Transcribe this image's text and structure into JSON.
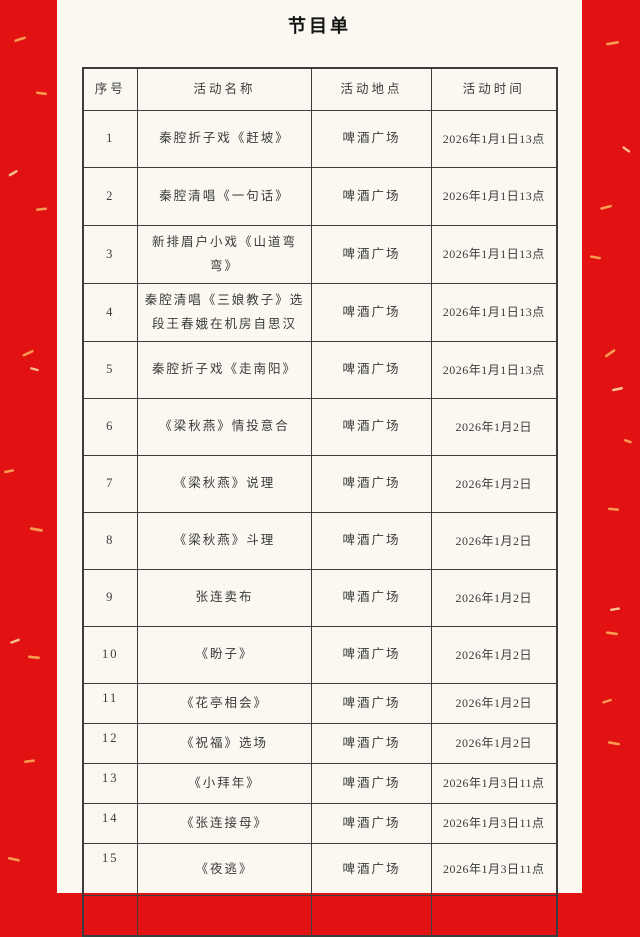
{
  "page": {
    "title": "节目单"
  },
  "table": {
    "headers": [
      "序号",
      "活动名称",
      "活动地点",
      "活动时间"
    ],
    "rows": [
      {
        "no": "1",
        "name": "秦腔折子戏《赶坡》",
        "place": "啤酒广场",
        "time": "2026年1月1日13点"
      },
      {
        "no": "2",
        "name": "秦腔清唱《一句话》",
        "place": "啤酒广场",
        "time": "2026年1月1日13点"
      },
      {
        "no": "3",
        "name": "新排眉户小戏《山道弯弯》",
        "place": "啤酒广场",
        "time": "2026年1月1日13点"
      },
      {
        "no": "4",
        "name": "秦腔清唱《三娘教子》选段王春娥在机房自思汉",
        "place": "啤酒广场",
        "time": "2026年1月1日13点"
      },
      {
        "no": "5",
        "name": "秦腔折子戏《走南阳》",
        "place": "啤酒广场",
        "time": "2026年1月1日13点"
      },
      {
        "no": "6",
        "name": "《梁秋燕》情投意合",
        "place": "啤酒广场",
        "time": "2026年1月2日"
      },
      {
        "no": "7",
        "name": "《梁秋燕》说理",
        "place": "啤酒广场",
        "time": "2026年1月2日"
      },
      {
        "no": "8",
        "name": "《梁秋燕》斗理",
        "place": "啤酒广场",
        "time": "2026年1月2日"
      },
      {
        "no": "9",
        "name": "张连卖布",
        "place": "啤酒广场",
        "time": "2026年1月2日"
      },
      {
        "no": "10",
        "name": "《盼子》",
        "place": "啤酒广场",
        "time": "2026年1月2日"
      },
      {
        "no": "11",
        "name": "《花亭相会》",
        "place": "啤酒广场",
        "time": "2026年1月2日"
      },
      {
        "no": "12",
        "name": "《祝福》选场",
        "place": "啤酒广场",
        "time": "2026年1月2日"
      },
      {
        "no": "13",
        "name": "《小拜年》",
        "place": "啤酒广场",
        "time": "2026年1月3日11点"
      },
      {
        "no": "14",
        "name": "《张连接母》",
        "place": "啤酒广场",
        "time": "2026年1月3日11点"
      },
      {
        "no": "15",
        "name": "《夜逃》",
        "place": "啤酒广场",
        "time": "2026年1月3日11点"
      },
      {
        "no": "",
        "name": "",
        "place": "",
        "time": ""
      }
    ]
  },
  "colors": {
    "band_red": "#e21212",
    "speckle_gold": "#ffb45e",
    "paper": "#faf8f1",
    "table_border": "#3d3d3d",
    "text": "#3b3b3b"
  }
}
